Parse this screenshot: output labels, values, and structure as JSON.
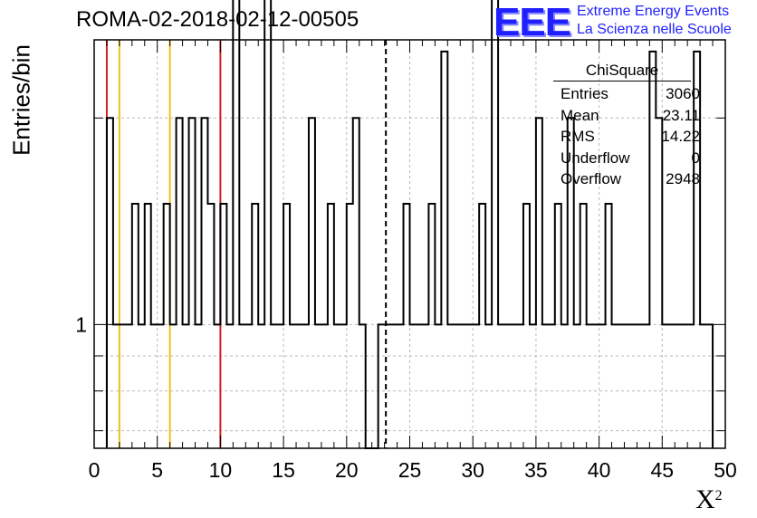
{
  "header": {
    "title": "ROMA-02-2018-02-12-00505",
    "logo": "EEE",
    "org_line1": "Extreme Energy Events",
    "org_line2": "La Scienza nelle Scuole"
  },
  "stats": {
    "name": "ChiSquare",
    "rows": [
      {
        "label": "Entries",
        "value": "3060"
      },
      {
        "label": "Mean",
        "value": "23.11"
      },
      {
        "label": "RMS",
        "value": "14.22"
      },
      {
        "label": "Underflow",
        "value": "0"
      },
      {
        "label": "Overflow",
        "value": "2948"
      }
    ]
  },
  "colors": {
    "red": "#d42020",
    "yellow": "#f0c020",
    "black": "#000000",
    "logo_blue": "#1f1fff"
  },
  "chart_data": {
    "type": "bar",
    "histogram": true,
    "xlabel": "X",
    "xlabel_sup": "2",
    "ylabel": "Entries/bin",
    "xlim": [
      0,
      50
    ],
    "ylim": [
      0.66,
      2.6
    ],
    "log_y": true,
    "grid": true,
    "bin_width": 0.5,
    "x_ticks": [
      "0",
      "5",
      "10",
      "15",
      "20",
      "25",
      "30",
      "35",
      "40",
      "45",
      "50"
    ],
    "y_ticks": [
      "1"
    ],
    "bin_starts": [
      1,
      1.5,
      2,
      2.5,
      3,
      3.5,
      4,
      4.5,
      5,
      5.5,
      6,
      6.5,
      7,
      7.5,
      8,
      8.5,
      9,
      9.5,
      10,
      10.5,
      11,
      11.5,
      12,
      12.5,
      13,
      13.5,
      14,
      14.5,
      15,
      15.5,
      16,
      16.5,
      17,
      17.5,
      18,
      18.5,
      19,
      19.5,
      20,
      20.5,
      21,
      22.5,
      23,
      23.5,
      24,
      24.5,
      25,
      25.5,
      26,
      26.5,
      27,
      27.5,
      28,
      28.5,
      29,
      29.5,
      30,
      30.5,
      31,
      31.5,
      32,
      32.5,
      33,
      33.5,
      34,
      34.5,
      35,
      35.5,
      36,
      36.5,
      37,
      37.5,
      38,
      38.5,
      39,
      39.5,
      40,
      40.5,
      41,
      41.5,
      42,
      42.5,
      43,
      43.5,
      44,
      44.5,
      45,
      45.5,
      46,
      46.5,
      47,
      47.5,
      48,
      48.5
    ],
    "values": [
      2,
      1,
      1,
      1,
      1.5,
      1,
      1.5,
      1,
      1,
      1.5,
      1,
      2,
      1,
      2,
      1,
      2,
      1.5,
      1,
      1.5,
      1,
      3,
      1,
      1,
      1.5,
      1,
      3,
      1,
      1,
      1.5,
      1,
      1,
      1,
      2,
      1,
      1,
      1.5,
      1,
      1,
      1.5,
      2,
      1,
      1,
      1,
      1,
      1,
      1.5,
      1,
      1,
      1,
      1.5,
      1,
      2.5,
      1,
      1,
      1,
      1,
      1,
      1.5,
      1,
      3,
      1,
      1,
      1,
      1,
      1.5,
      1,
      2,
      1,
      1,
      1.5,
      1,
      2,
      1,
      1.5,
      1,
      1,
      1,
      1.5,
      1,
      1,
      1,
      1,
      1,
      1,
      2.5,
      2,
      1,
      1,
      1,
      1,
      1,
      2.5,
      1,
      1
    ],
    "vertical_lines": [
      {
        "x": 1,
        "color": "red"
      },
      {
        "x": 10,
        "color": "red"
      },
      {
        "x": 2,
        "color": "yellow"
      },
      {
        "x": 6,
        "color": "yellow"
      },
      {
        "x": 23.11,
        "color": "black",
        "style": "dashed"
      }
    ]
  }
}
